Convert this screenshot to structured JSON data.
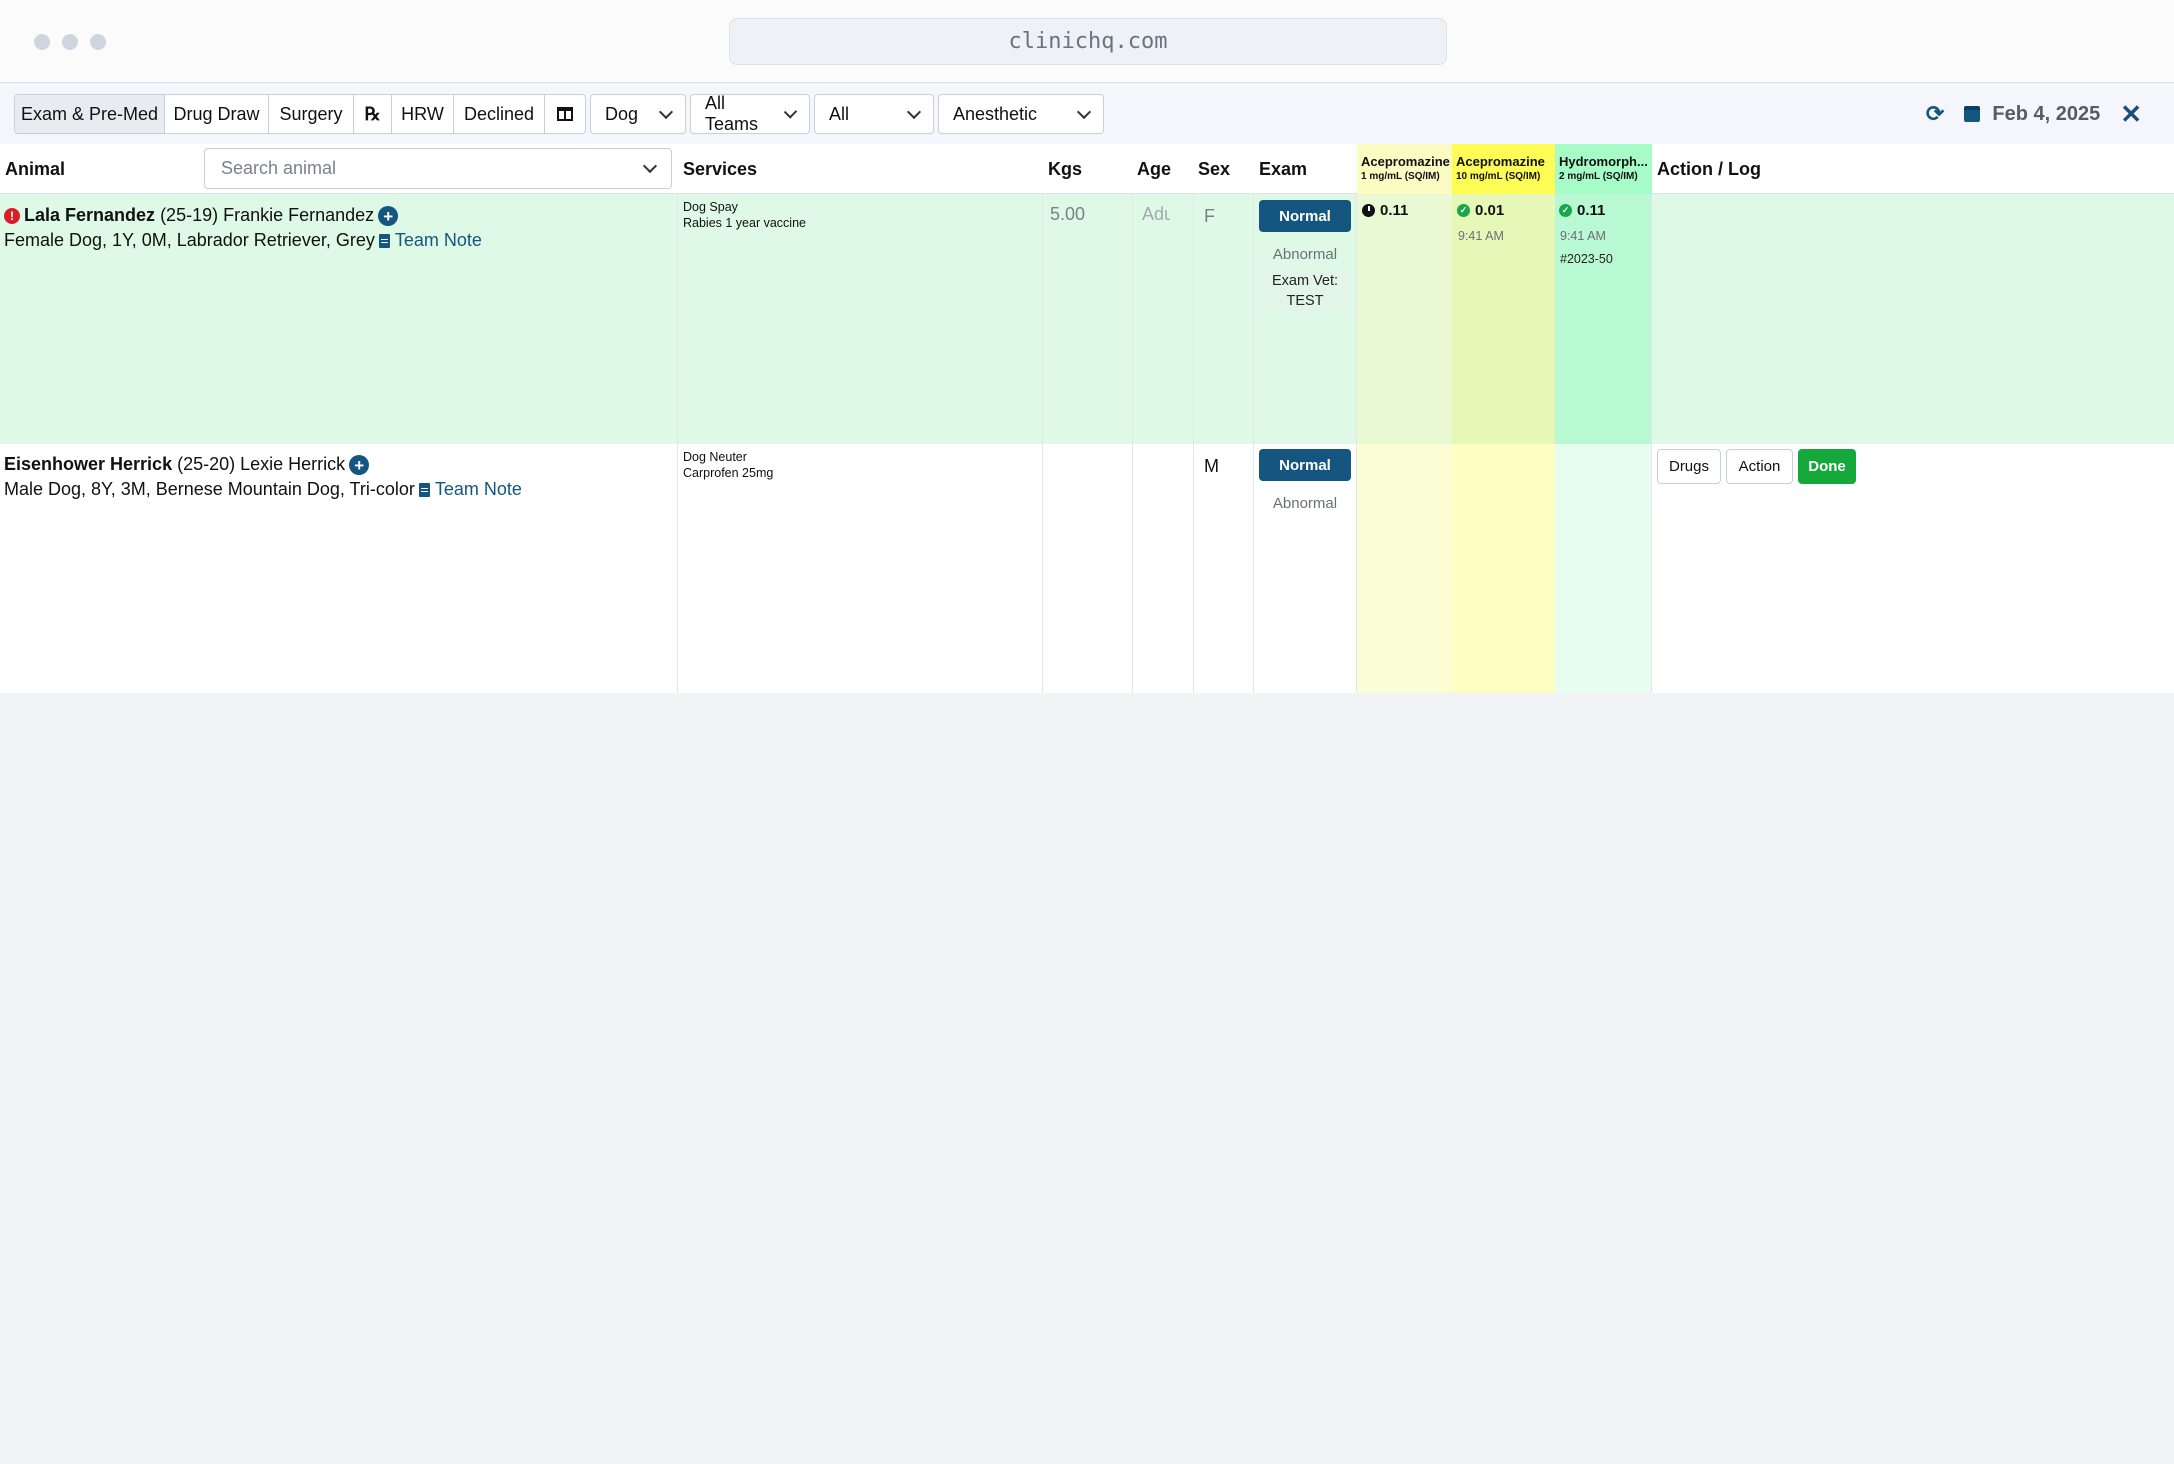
{
  "browser": {
    "url": "clinichq.com"
  },
  "toolbar": {
    "tabs": [
      "Exam & Pre-Med",
      "Drug Draw",
      "Surgery",
      "℞",
      "HRW",
      "Declined"
    ],
    "filters": {
      "species": "Dog",
      "teams": "All Teams",
      "status": "All",
      "category": "Anesthetic"
    },
    "date": "Feb 4, 2025"
  },
  "table": {
    "headers": {
      "animal": "Animal",
      "services": "Services",
      "kgs": "Kgs",
      "age": "Age",
      "sex": "Sex",
      "exam": "Exam",
      "action": "Action / Log"
    },
    "search_placeholder": "Search animal",
    "drugs": [
      {
        "name": "Acepromazine",
        "sub": "1 mg/mL (SQ/IM)",
        "color": "#fafcc2"
      },
      {
        "name": "Acepromazine",
        "sub": "10 mg/mL (SQ/IM)",
        "color": "#fdfd55"
      },
      {
        "name": "Hydromorph...",
        "sub": "2 mg/mL (SQ/IM)",
        "color": "#a6fcc6"
      }
    ],
    "rows": [
      {
        "name": "Lala Fernandez",
        "id": "(25-19)",
        "owner": "Frankie Fernandez",
        "details": "Female Dog, 1Y, 0M, Labrador Retriever, Grey",
        "note": "Team Note",
        "services": [
          "Dog Spay",
          "Rabies 1 year vaccine"
        ],
        "kgs": "5.00",
        "age_placeholder": "Adult",
        "sex": "F",
        "exam_normal": "Normal",
        "exam_abnormal": "Abnormal",
        "exam_vet": "Exam Vet:",
        "exam_vet_name": "TEST",
        "doses": [
          {
            "value": "0.11",
            "status": "pending"
          },
          {
            "value": "0.01",
            "status": "done",
            "time": "9:41 AM"
          },
          {
            "value": "0.11",
            "status": "done",
            "time": "9:41 AM",
            "lot": "#2023-50"
          }
        ]
      },
      {
        "name": "Eisenhower Herrick",
        "id": "(25-20)",
        "owner": "Lexie Herrick",
        "details": "Male Dog, 8Y, 3M, Bernese Mountain Dog, Tri-color",
        "note": "Team Note",
        "services": [
          "Dog Neuter",
          "Carprofen 25mg"
        ],
        "sex": "M",
        "exam_normal": "Normal",
        "exam_abnormal": "Abnormal",
        "actions": [
          "Drugs",
          "Action",
          "Done"
        ]
      }
    ]
  }
}
